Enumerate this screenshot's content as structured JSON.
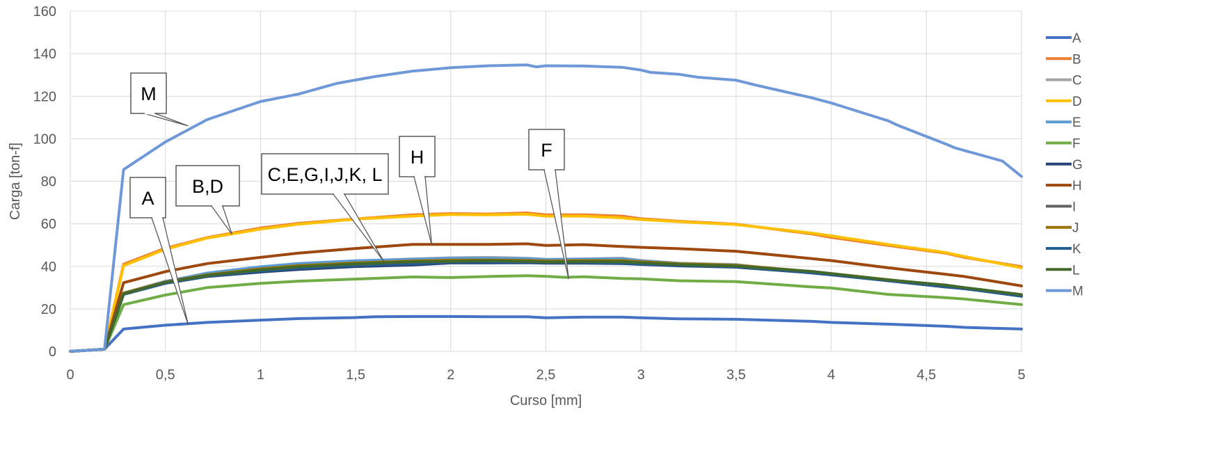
{
  "chart_data": {
    "type": "line",
    "title": "",
    "xlabel": "Curso [mm]",
    "ylabel": "Carga [ton-f]",
    "xlim": [
      0,
      5
    ],
    "ylim": [
      0,
      160
    ],
    "xticks": [
      0,
      0.5,
      1,
      1.5,
      2,
      2.5,
      3,
      3.5,
      4,
      4.5,
      5
    ],
    "xtick_labels": [
      "0",
      "0,5",
      "1",
      "1,5",
      "2",
      "2,5",
      "3",
      "3,5",
      "4",
      "4,5",
      "5"
    ],
    "yticks": [
      0,
      20,
      40,
      60,
      80,
      100,
      120,
      140,
      160
    ],
    "ytick_labels": [
      "0",
      "20",
      "40",
      "60",
      "80",
      "100",
      "120",
      "140",
      "160"
    ],
    "grid": "vertical and horizontal",
    "legend_position": "right",
    "series": [
      {
        "name": "A",
        "color": "#4472C4",
        "x": [
          0,
          0.18,
          0.28,
          0.5,
          0.72,
          1,
          1.2,
          1.5,
          1.6,
          1.8,
          2,
          2.2,
          2.4,
          2.5,
          2.7,
          2.9,
          3,
          3.2,
          3.5,
          3.9,
          4,
          4.3,
          4.6,
          4.7,
          5
        ],
        "y": [
          0,
          1,
          10.5,
          12.3,
          13.6,
          14.7,
          15.4,
          15.9,
          16.3,
          16.4,
          16.4,
          16.3,
          16.3,
          15.8,
          16.1,
          16.1,
          15.8,
          15.3,
          15.1,
          14.1,
          13.6,
          12.8,
          11.8,
          11.3,
          10.5
        ]
      },
      {
        "name": "B",
        "color": "#ED7D31",
        "x": [
          0,
          0.18,
          0.28,
          0.5,
          0.72,
          1,
          1.2,
          1.5,
          1.8,
          2,
          2.2,
          2.4,
          2.5,
          2.7,
          2.9,
          3,
          3.2,
          3.5,
          3.9,
          4,
          4.3,
          4.6,
          4.7,
          5
        ],
        "y": [
          0,
          1,
          41,
          48.5,
          53.5,
          58,
          60.2,
          62.3,
          64.2,
          64.8,
          64.6,
          65.1,
          64.2,
          64.2,
          63.6,
          62.4,
          61.2,
          59.8,
          55.2,
          53.6,
          49.8,
          46.2,
          44.2,
          39.8
        ]
      },
      {
        "name": "C",
        "color": "#A5A5A5",
        "x": [
          0,
          0.18,
          0.28,
          0.5,
          0.72,
          1,
          1.2,
          1.5,
          1.8,
          2,
          2.2,
          2.4,
          2.5,
          2.7,
          2.9,
          3,
          3.2,
          3.5,
          3.9,
          4,
          4.3,
          4.6,
          4.7,
          5
        ],
        "y": [
          0,
          1,
          27.5,
          33,
          36.5,
          39.5,
          41,
          42.5,
          43.5,
          44,
          44.2,
          43.8,
          43.3,
          43.5,
          43.8,
          42.8,
          41.5,
          40.8,
          37,
          36.3,
          33.5,
          30.5,
          29.5,
          26.5
        ]
      },
      {
        "name": "D",
        "color": "#FFC000",
        "x": [
          0,
          0.18,
          0.28,
          0.5,
          0.72,
          1,
          1.2,
          1.5,
          1.8,
          2,
          2.2,
          2.4,
          2.5,
          2.7,
          2.9,
          3,
          3.2,
          3.5,
          3.9,
          4,
          4.3,
          4.6,
          4.7,
          5
        ],
        "y": [
          0,
          1,
          40.3,
          48,
          53.3,
          57.5,
          59.8,
          62.2,
          63.6,
          64.4,
          64.2,
          64.5,
          63.6,
          63.6,
          62.8,
          62,
          61,
          59.6,
          55.6,
          54.3,
          50.3,
          46.5,
          44.6,
          39.3
        ]
      },
      {
        "name": "E",
        "color": "#5B9BD5",
        "x": [
          0,
          0.18,
          0.28,
          0.5,
          0.72,
          1,
          1.2,
          1.5,
          1.8,
          2,
          2.2,
          2.4,
          2.5,
          2.7,
          2.9,
          3,
          3.2,
          3.5,
          3.9,
          4,
          4.3,
          4.6,
          4.7,
          5
        ],
        "y": [
          0,
          1,
          27,
          32.8,
          36.8,
          39.8,
          41.3,
          42.6,
          43.3,
          43.8,
          43.8,
          43.6,
          43.2,
          43.4,
          43.6,
          42.5,
          41.3,
          40.6,
          36.8,
          36,
          33.2,
          30.3,
          29.4,
          26.3
        ]
      },
      {
        "name": "F",
        "color": "#70AD47",
        "x": [
          0,
          0.18,
          0.28,
          0.5,
          0.72,
          1,
          1.2,
          1.5,
          1.8,
          2,
          2.2,
          2.4,
          2.5,
          2.6,
          2.7,
          2.9,
          3,
          3.2,
          3.5,
          3.9,
          4,
          4.3,
          4.6,
          4.7,
          5
        ],
        "y": [
          0,
          1,
          22,
          26.5,
          30,
          32,
          33,
          34,
          35,
          34.7,
          35.2,
          35.6,
          35.3,
          34.8,
          35.1,
          34.3,
          34.1,
          33.2,
          32.8,
          30.3,
          29.8,
          26.8,
          25.3,
          24.6,
          22
        ]
      },
      {
        "name": "G",
        "color": "#264478",
        "x": [
          0,
          0.18,
          0.28,
          0.5,
          0.72,
          1,
          1.2,
          1.5,
          1.8,
          2,
          2.2,
          2.4,
          2.5,
          2.7,
          2.9,
          3,
          3.2,
          3.5,
          3.9,
          4,
          4.3,
          4.6,
          4.7,
          5
        ],
        "y": [
          0,
          1,
          26.8,
          32,
          35.2,
          37.3,
          38.5,
          39.9,
          40.6,
          41.6,
          41.6,
          41.7,
          41.5,
          41.5,
          41.3,
          40.9,
          40.2,
          39.6,
          36.9,
          36,
          33.2,
          30.3,
          29.5,
          25.9
        ]
      },
      {
        "name": "H",
        "color": "#9E480E",
        "x": [
          0,
          0.18,
          0.28,
          0.5,
          0.72,
          1,
          1.2,
          1.5,
          1.8,
          2,
          2.2,
          2.4,
          2.5,
          2.7,
          2.9,
          3,
          3.2,
          3.5,
          3.9,
          4,
          4.3,
          4.6,
          4.7,
          5
        ],
        "y": [
          0,
          1,
          32.3,
          37.5,
          41.3,
          44.2,
          46.2,
          48.4,
          50.3,
          50.3,
          50.3,
          50.6,
          49.8,
          50.2,
          49.3,
          48.9,
          48.3,
          47.1,
          43.6,
          42.7,
          39.3,
          36.3,
          35.2,
          30.8
        ]
      },
      {
        "name": "I",
        "color": "#636363",
        "x": [
          0,
          0.18,
          0.28,
          0.5,
          0.72,
          1,
          1.2,
          1.5,
          1.8,
          2,
          2.2,
          2.4,
          2.5,
          2.7,
          2.9,
          3,
          3.2,
          3.5,
          3.9,
          4,
          4.3,
          4.6,
          4.7,
          5
        ],
        "y": [
          0,
          1,
          27.2,
          32.4,
          35.8,
          38.5,
          40,
          41.3,
          42.3,
          42.6,
          42.8,
          42.6,
          42.3,
          42.5,
          42.5,
          41.9,
          41,
          40.3,
          37.2,
          36.3,
          33.5,
          30.6,
          29.7,
          26.3
        ]
      },
      {
        "name": "J",
        "color": "#997300",
        "x": [
          0,
          0.18,
          0.28,
          0.5,
          0.72,
          1,
          1.2,
          1.5,
          1.8,
          2,
          2.2,
          2.4,
          2.5,
          2.7,
          2.9,
          3,
          3.2,
          3.5,
          3.9,
          4,
          4.3,
          4.6,
          4.7,
          5
        ],
        "y": [
          0,
          1,
          27.4,
          32.6,
          36,
          38.8,
          40.3,
          41.6,
          42.5,
          42.9,
          43,
          42.8,
          42.5,
          42.7,
          42.7,
          42.1,
          41.2,
          40.5,
          37.5,
          36.5,
          33.7,
          30.9,
          29.9,
          26.6
        ]
      },
      {
        "name": "K",
        "color": "#255E91",
        "x": [
          0,
          0.18,
          0.28,
          0.5,
          0.72,
          1,
          1.2,
          1.5,
          1.8,
          2,
          2.2,
          2.4,
          2.5,
          2.7,
          2.9,
          3,
          3.2,
          3.5,
          3.9,
          4,
          4.3,
          4.6,
          4.7,
          5
        ],
        "y": [
          0,
          1,
          26.9,
          32.1,
          35.4,
          37.8,
          39.2,
          40.5,
          41.3,
          42,
          42,
          42,
          41.8,
          41.8,
          41.6,
          41.2,
          40.5,
          39.8,
          37,
          36.1,
          33.3,
          30.5,
          29.6,
          26
        ]
      },
      {
        "name": "L",
        "color": "#43682B",
        "x": [
          0,
          0.18,
          0.28,
          0.5,
          0.72,
          1,
          1.2,
          1.5,
          1.8,
          2,
          2.2,
          2.4,
          2.5,
          2.7,
          2.9,
          3,
          3.2,
          3.5,
          3.9,
          4,
          4.3,
          4.6,
          4.7,
          5
        ],
        "y": [
          0,
          1,
          27.1,
          32.5,
          35.7,
          38.3,
          39.8,
          41.1,
          42.1,
          42.3,
          42.6,
          42.3,
          42,
          42.2,
          42.1,
          41.7,
          40.8,
          40.1,
          37.6,
          36.6,
          33.6,
          31.2,
          30,
          26.7
        ]
      },
      {
        "name": "M",
        "color": "#6F98D8",
        "x": [
          0,
          0.18,
          0.28,
          0.5,
          0.72,
          1,
          1.2,
          1.4,
          1.6,
          1.8,
          2,
          2.2,
          2.4,
          2.45,
          2.5,
          2.7,
          2.9,
          3,
          3.05,
          3.2,
          3.3,
          3.5,
          3.6,
          3.9,
          4,
          4.3,
          4.35,
          4.6,
          4.65,
          4.9,
          5
        ],
        "y": [
          0,
          1,
          85.5,
          98.5,
          109,
          117.5,
          121,
          126,
          129.2,
          131.8,
          133.4,
          134.3,
          134.7,
          133.8,
          134.3,
          134.2,
          133.6,
          132.3,
          131.2,
          130.3,
          128.9,
          127.5,
          125.3,
          119.2,
          116.8,
          108.4,
          106.3,
          97.6,
          95.7,
          89.5,
          82.3
        ]
      }
    ],
    "annotations": [
      {
        "text": "M",
        "target_x": 0.62,
        "target_y": 106
      },
      {
        "text": "A",
        "target_x": 0.62,
        "target_y": 12.5
      },
      {
        "text": "B,D",
        "target_x": 0.85,
        "target_y": 55
      },
      {
        "text": "C,E,G,I,J,K, L",
        "target_x": 1.65,
        "target_y": 42
      },
      {
        "text": "H",
        "target_x": 1.9,
        "target_y": 50
      },
      {
        "text": "F",
        "target_x": 2.62,
        "target_y": 34
      }
    ]
  }
}
